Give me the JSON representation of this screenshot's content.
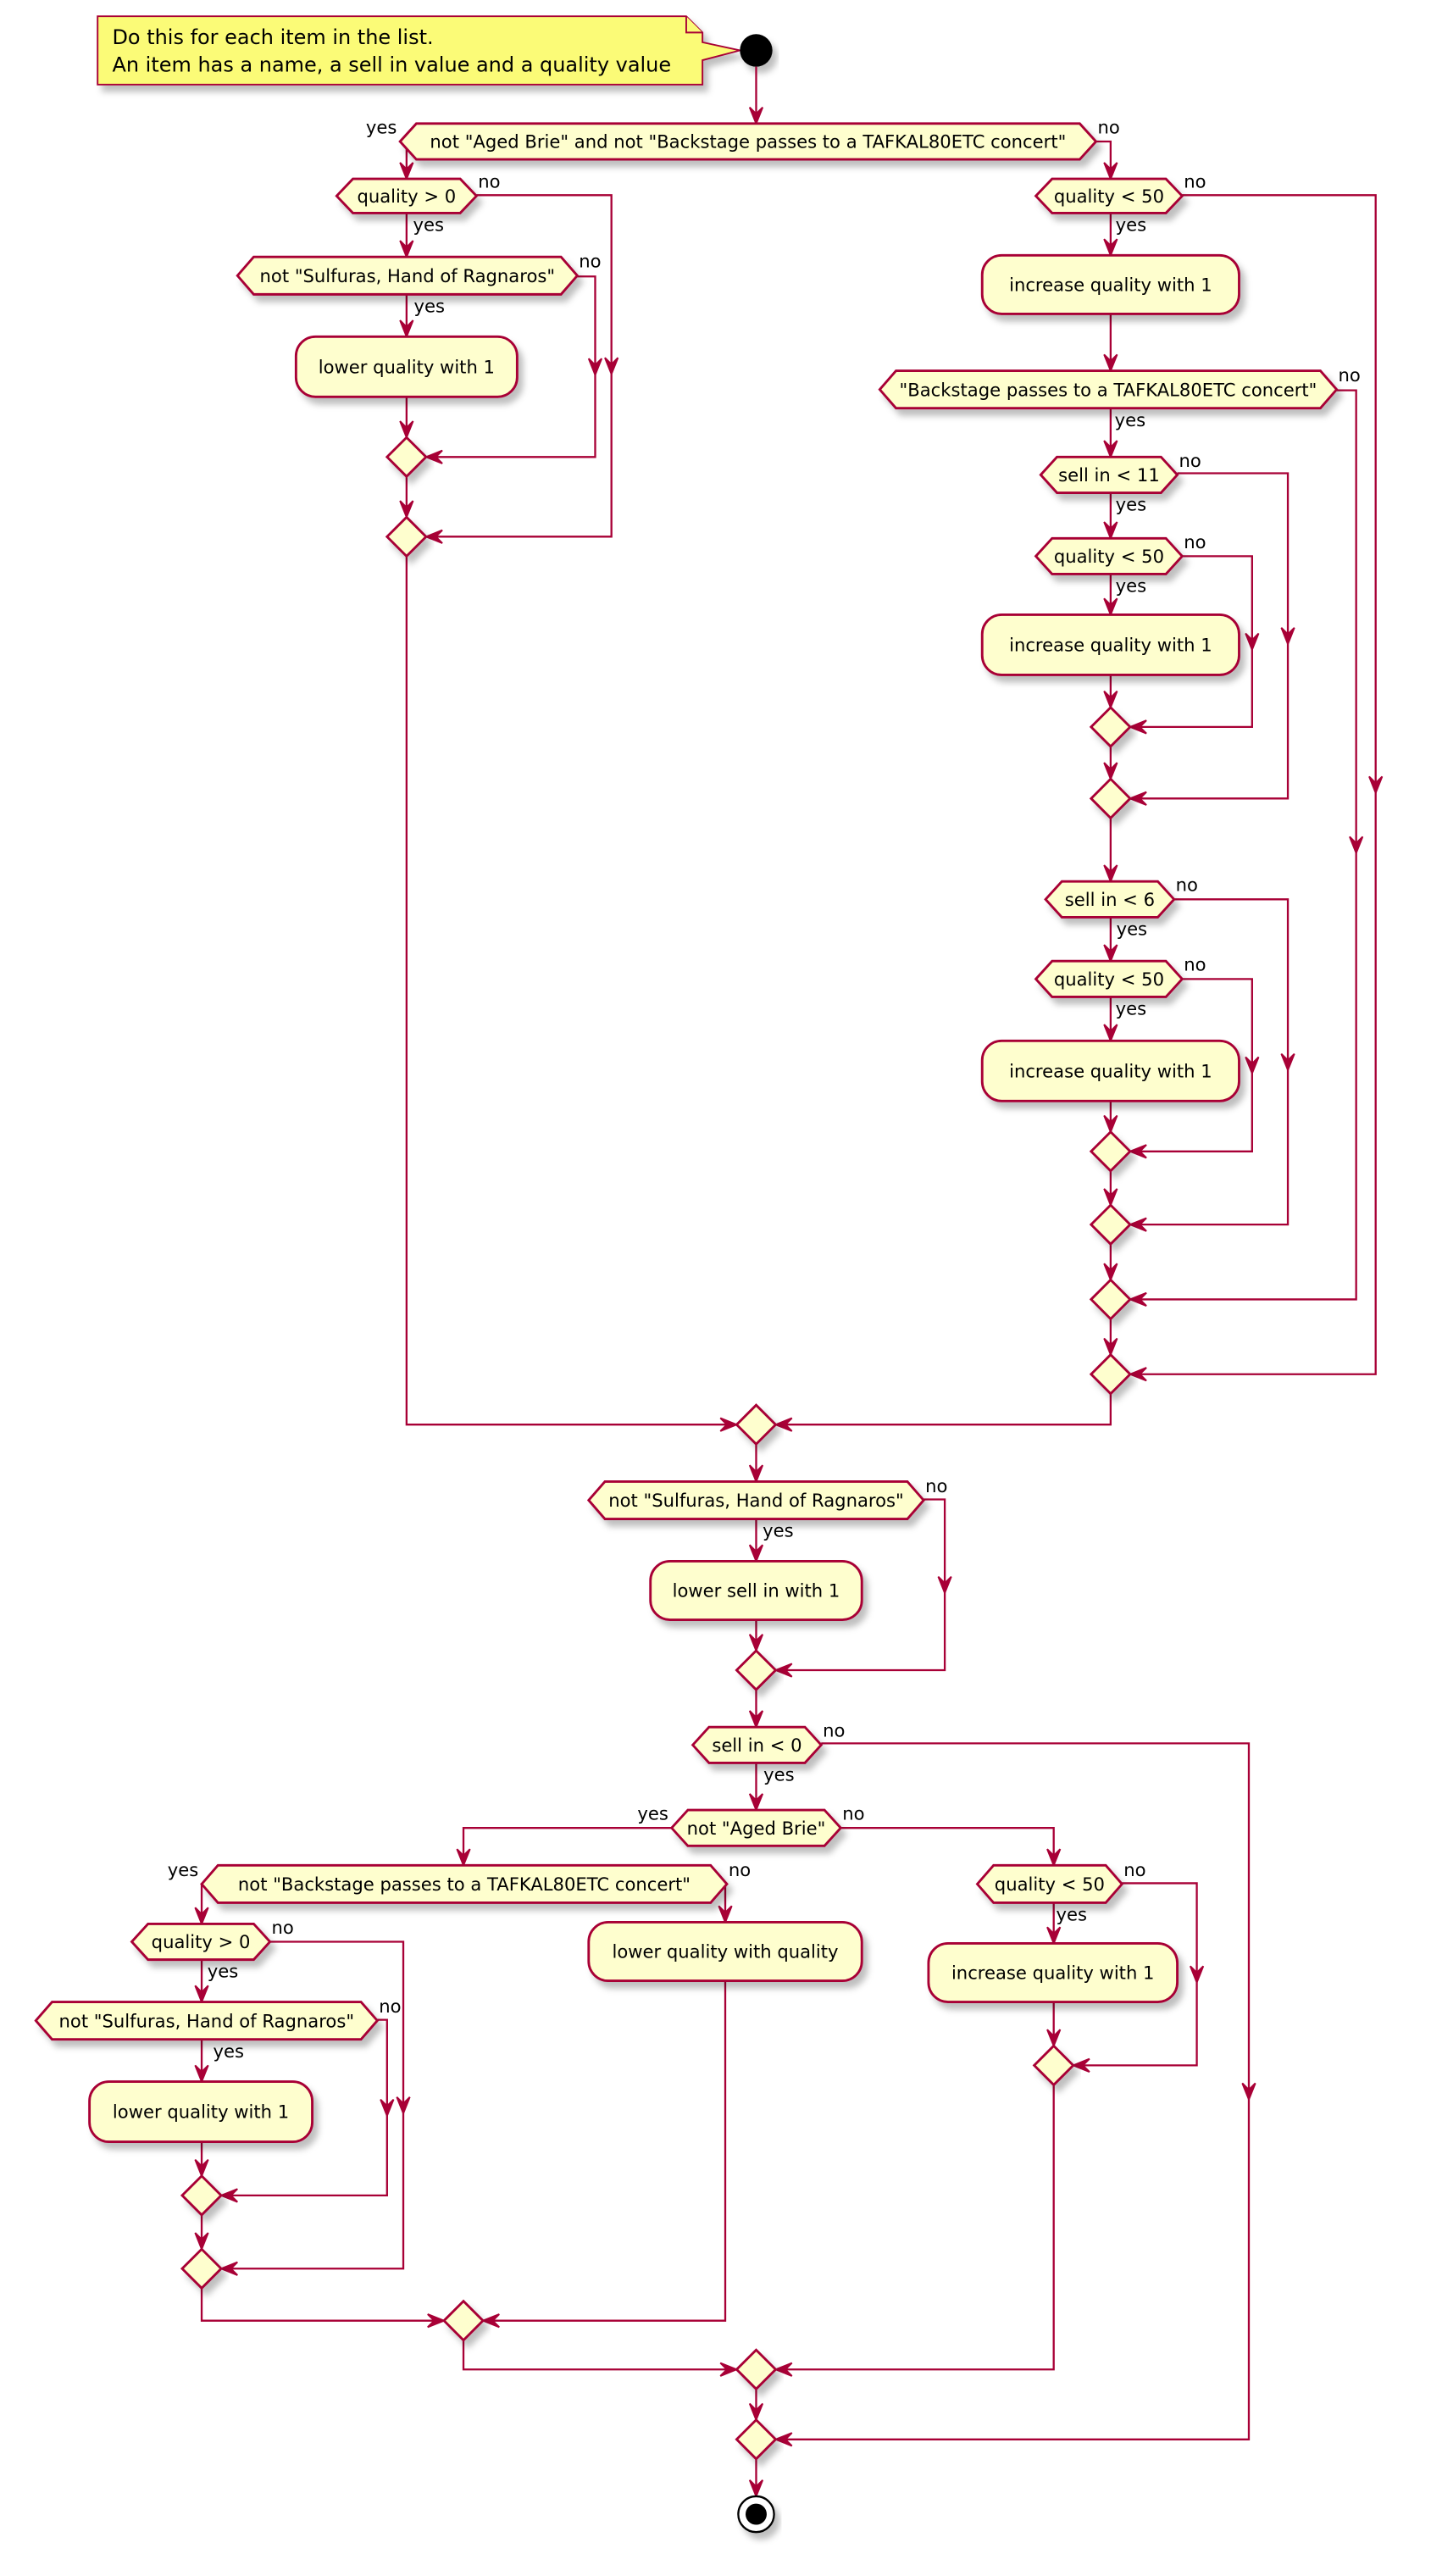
{
  "colors": {
    "border": "#A80036",
    "fill": "#FEFECE",
    "note_fill": "#FBFB77"
  },
  "note": {
    "line1": "Do this for each item in the list.",
    "line2": "An item has a name, a sell in value and a quality value"
  },
  "nodes": {
    "d1": {
      "text": "not \"Aged Brie\" and not \"Backstage passes to a TAFKAL80ETC concert\"",
      "yes": "yes",
      "no": "no"
    },
    "d2": {
      "text": "quality > 0",
      "yes": "yes",
      "no": "no"
    },
    "d3": {
      "text": "not \"Sulfuras, Hand of Ragnaros\"",
      "yes": "yes",
      "no": "no"
    },
    "a1": {
      "text": "lower quality with 1"
    },
    "d4": {
      "text": "quality < 50",
      "yes": "yes",
      "no": "no"
    },
    "a2": {
      "text": "increase quality with 1"
    },
    "d5": {
      "text": "\"Backstage passes to a TAFKAL80ETC concert\"",
      "yes": "yes",
      "no": "no"
    },
    "d6": {
      "text": "sell in < 11",
      "yes": "yes",
      "no": "no"
    },
    "d7": {
      "text": "quality < 50",
      "yes": "yes",
      "no": "no"
    },
    "a3": {
      "text": "increase quality with 1"
    },
    "d8": {
      "text": "sell in < 6",
      "yes": "yes",
      "no": "no"
    },
    "d9": {
      "text": "quality < 50",
      "yes": "yes",
      "no": "no"
    },
    "a4": {
      "text": "increase quality with 1"
    },
    "d10": {
      "text": "not \"Sulfuras, Hand of Ragnaros\"",
      "yes": "yes",
      "no": "no"
    },
    "a5": {
      "text": "lower sell in with 1"
    },
    "d11": {
      "text": "sell in < 0",
      "yes": "yes",
      "no": "no"
    },
    "d12": {
      "text": "not \"Aged Brie\"",
      "yes": "yes",
      "no": "no"
    },
    "d13": {
      "text": "not \"Backstage passes to a TAFKAL80ETC concert\"",
      "yes": "yes",
      "no": "no"
    },
    "d14": {
      "text": "quality < 50",
      "yes": "yes",
      "no": "no"
    },
    "d15": {
      "text": "quality > 0",
      "yes": "yes",
      "no": "no"
    },
    "a6": {
      "text": "lower quality with quality"
    },
    "a7": {
      "text": "increase quality with 1"
    },
    "d16": {
      "text": "not \"Sulfuras, Hand of Ragnaros\"",
      "yes": "yes",
      "no": "no"
    },
    "a8": {
      "text": "lower quality with 1"
    }
  }
}
